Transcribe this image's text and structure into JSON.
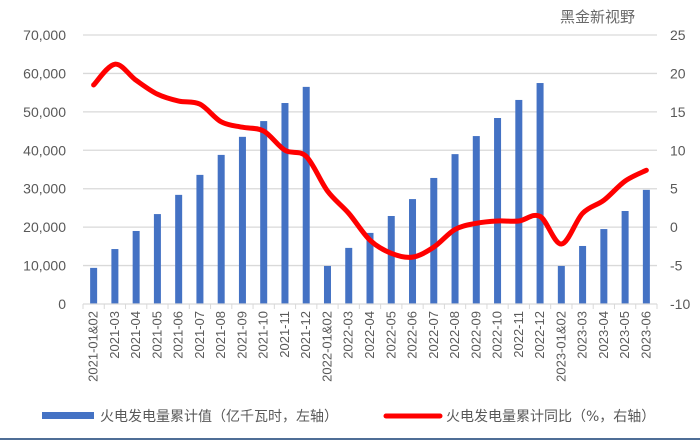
{
  "chart_data": {
    "type": "bar+line",
    "categories": [
      "2021-01&02",
      "2021-03",
      "2021-04",
      "2021-05",
      "2021-06",
      "2021-07",
      "2021-08",
      "2021-09",
      "2021-10",
      "2021-11",
      "2021-12",
      "2022-01&02",
      "2022-03",
      "2022-04",
      "2022-05",
      "2022-06",
      "2022-07",
      "2022-08",
      "2022-09",
      "2022-10",
      "2022-11",
      "2022-12",
      "2023-01&02",
      "2023-03",
      "2023-04",
      "2023-05",
      "2023-06"
    ],
    "series": [
      {
        "name": "火电发电量累计值（亿千瓦时，左轴）",
        "type": "bar",
        "axis": "left",
        "color": "#4472C4",
        "values": [
          9400,
          14300,
          19000,
          23400,
          28400,
          33600,
          38800,
          43500,
          47600,
          52300,
          56500,
          9900,
          14600,
          18500,
          22900,
          27300,
          32800,
          39000,
          43700,
          48400,
          53100,
          57500,
          9900,
          15100,
          19500,
          24200,
          29700
        ]
      },
      {
        "name": "火电发电量累计同比（%，右轴）",
        "type": "line",
        "axis": "right",
        "color": "#FF0000",
        "values": [
          18.5,
          21.2,
          19.1,
          17.3,
          16.4,
          16.0,
          13.7,
          13.0,
          12.5,
          10.0,
          9.2,
          4.7,
          1.8,
          -1.7,
          -3.4,
          -3.9,
          -2.6,
          -0.3,
          0.5,
          0.8,
          0.8,
          1.4,
          -2.2,
          1.8,
          3.5,
          6.0,
          7.4
        ]
      }
    ],
    "left_axis": {
      "ylim": [
        0,
        70000
      ],
      "ticks": [
        "0",
        "10,000",
        "20,000",
        "30,000",
        "40,000",
        "50,000",
        "60,000",
        "70,000"
      ]
    },
    "right_axis": {
      "ylim": [
        -10,
        25
      ],
      "ticks": [
        "-10",
        "-5",
        "0",
        "5",
        "10",
        "15",
        "20",
        "25"
      ]
    },
    "grid": true,
    "legend": "bottom"
  },
  "watermark": "黑金新视野"
}
